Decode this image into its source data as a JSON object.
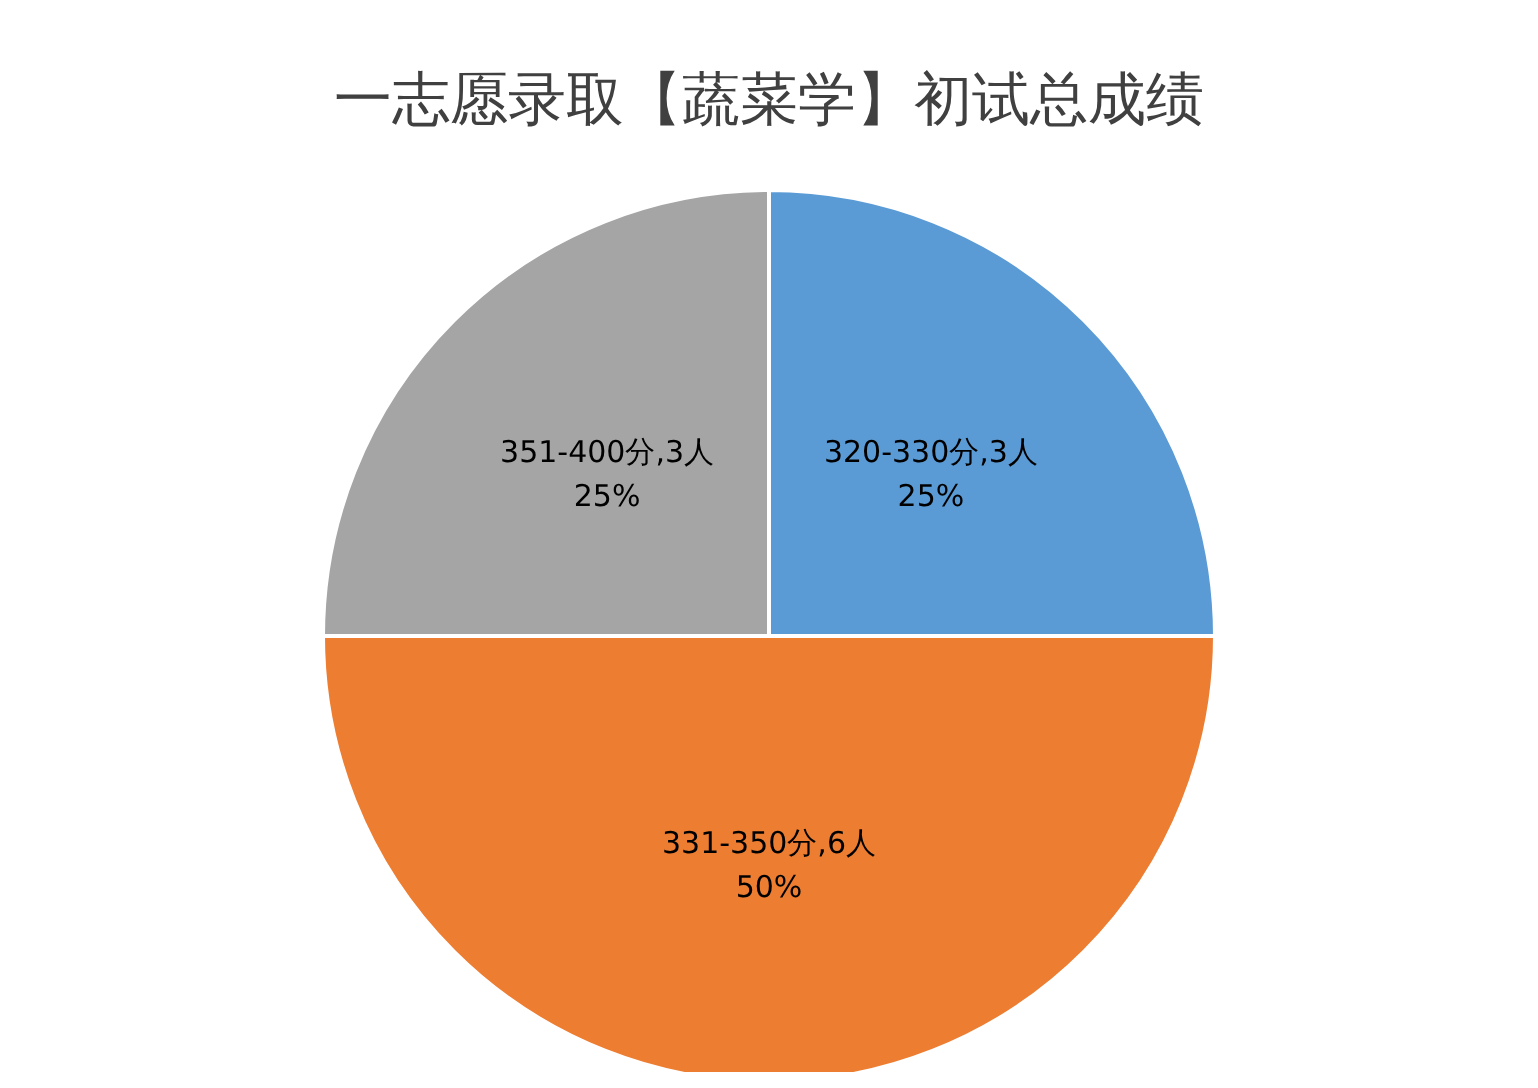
{
  "chart_data": {
    "type": "pie",
    "title": "一志愿录取【蔬菜学】初试总成绩",
    "categories": [
      "320-330分",
      "331-350分",
      "351-400分"
    ],
    "values": [
      3,
      6,
      3
    ],
    "colors": [
      "#5b9bd5",
      "#ed7d31",
      "#a5a5a5"
    ],
    "value_labels": [
      ",3人\n25%",
      ",6人\n50%",
      ",3人\n25%"
    ],
    "legend": false
  }
}
